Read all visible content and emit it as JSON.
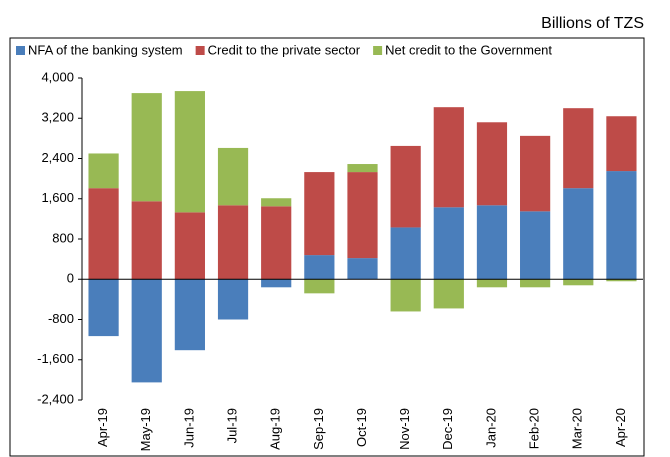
{
  "chart_data": {
    "type": "stacked-bar",
    "unit_label": "Billions of TZS",
    "categories": [
      "Apr-19",
      "May-19",
      "Jun-19",
      "Jul-19",
      "Aug-19",
      "Sep-19",
      "Oct-19",
      "Nov-19",
      "Dec-19",
      "Jan-20",
      "Feb-20",
      "Mar-20",
      "Apr-20"
    ],
    "series": [
      {
        "name": "NFA of the banking system",
        "color": "#4a7ebb",
        "values": [
          -1130,
          -2050,
          -1410,
          -800,
          -160,
          480,
          420,
          1030,
          1430,
          1470,
          1350,
          1810,
          2150
        ]
      },
      {
        "name": "Credit to the private sector",
        "color": "#be4b48",
        "values": [
          1810,
          1550,
          1330,
          1470,
          1450,
          1650,
          1710,
          1620,
          1990,
          1650,
          1500,
          1590,
          1090
        ]
      },
      {
        "name": "Net credit to the Government",
        "color": "#98b954",
        "values": [
          690,
          2150,
          2410,
          1140,
          160,
          -280,
          160,
          -640,
          -580,
          -160,
          -160,
          -120,
          -40
        ]
      }
    ],
    "ylim": [
      -2400,
      4000
    ],
    "yticks": [
      {
        "value": -2400,
        "label": "-2,400"
      },
      {
        "value": -1600,
        "label": "-1,600"
      },
      -800,
      0,
      800,
      {
        "value": 1600,
        "label": "1,600"
      },
      {
        "value": 2400,
        "label": "2,400"
      },
      {
        "value": 3200,
        "label": "3,200"
      },
      {
        "value": 4000,
        "label": "4,000"
      }
    ]
  }
}
